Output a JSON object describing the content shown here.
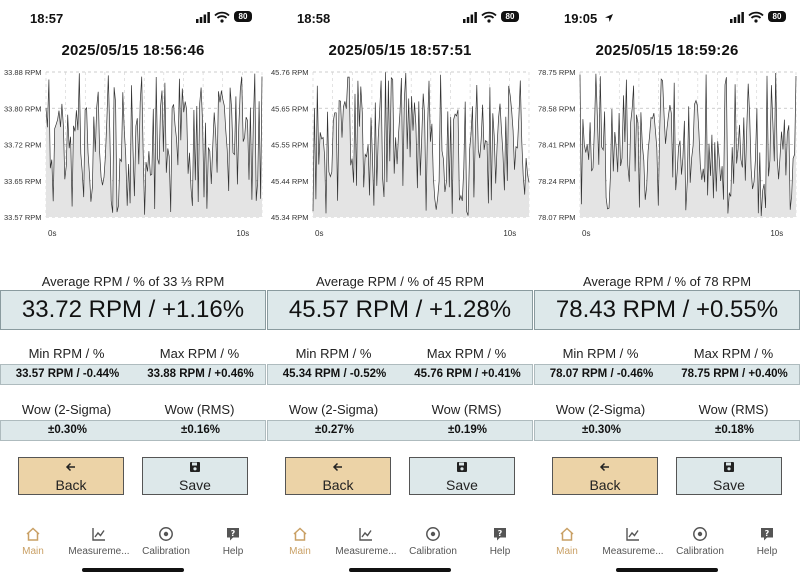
{
  "screens": [
    {
      "status_time": "18:57",
      "battery": "80",
      "location_arrow": false,
      "timestamp": "2025/05/15 18:56:46",
      "avg_label": "Average RPM / % of 33 ⅓ RPM",
      "avg_value": "33.72 RPM / +1.16%",
      "min_label": "Min RPM / %",
      "max_label": "Max RPM / %",
      "min_value": "33.57 RPM / -0.44%",
      "max_value": "33.88 RPM / +0.46%",
      "wow_sigma_label": "Wow (2-Sigma)",
      "wow_rms_label": "Wow (RMS)",
      "wow_sigma_value": "±0.30%",
      "wow_rms_value": "±0.16%",
      "chart_seed": 11,
      "chart_min": 33.57,
      "chart_max": 33.88
    },
    {
      "status_time": "18:58",
      "battery": "80",
      "location_arrow": false,
      "timestamp": "2025/05/15 18:57:51",
      "avg_label": "Average RPM / % of 45 RPM",
      "avg_value": "45.57 RPM / +1.28%",
      "min_label": "Min RPM / %",
      "max_label": "Max RPM / %",
      "min_value": "45.34 RPM / -0.52%",
      "max_value": "45.76 RPM / +0.41%",
      "wow_sigma_label": "Wow (2-Sigma)",
      "wow_rms_label": "Wow (RMS)",
      "wow_sigma_value": "±0.27%",
      "wow_rms_value": "±0.19%",
      "chart_seed": 29,
      "chart_min": 45.34,
      "chart_max": 45.76
    },
    {
      "status_time": "19:05",
      "battery": "80",
      "location_arrow": true,
      "timestamp": "2025/05/15 18:59:26",
      "avg_label": "Average RPM / % of 78 RPM",
      "avg_value": "78.43 RPM / +0.55%",
      "min_label": "Min RPM / %",
      "max_label": "Max RPM / %",
      "min_value": "78.07 RPM / -0.46%",
      "max_value": "78.75 RPM / +0.40%",
      "wow_sigma_label": "Wow (2-Sigma)",
      "wow_rms_label": "Wow (RMS)",
      "wow_sigma_value": "±0.30%",
      "wow_rms_value": "±0.18%",
      "chart_seed": 47,
      "chart_min": 78.07,
      "chart_max": 78.75
    }
  ],
  "buttons": {
    "back": "Back",
    "save": "Save"
  },
  "tabs": [
    "Main",
    "Measureme...",
    "Calibration",
    "Help"
  ],
  "colors": {
    "accent": "#c9a065",
    "panel": "#dde8ea",
    "back_button": "#ecd3a7"
  },
  "chart_data": [
    {
      "type": "area",
      "title": "2025/05/15 18:56:46",
      "xlabel": "",
      "ylabel": "RPM",
      "x_ticks": [
        "0s",
        "10s"
      ],
      "y_ticks": [
        "33.88 RPM",
        "33.80 RPM",
        "33.72 RPM",
        "33.65 RPM",
        "33.57 RPM"
      ],
      "ylim": [
        33.57,
        33.88
      ],
      "xlim": [
        0,
        11
      ],
      "grid": true
    },
    {
      "type": "area",
      "title": "2025/05/15 18:57:51",
      "xlabel": "",
      "ylabel": "RPM",
      "x_ticks": [
        "0s",
        "10s"
      ],
      "y_ticks": [
        "45.76 RPM",
        "45.65 RPM",
        "45.55 RPM",
        "45.44 RPM",
        "45.34 RPM"
      ],
      "ylim": [
        45.34,
        45.76
      ],
      "xlim": [
        0,
        11
      ],
      "grid": true
    },
    {
      "type": "area",
      "title": "2025/05/15 18:59:26",
      "xlabel": "",
      "ylabel": "RPM",
      "x_ticks": [
        "0s",
        "10s"
      ],
      "y_ticks": [
        "78.75 RPM",
        "78.58 RPM",
        "78.41 RPM",
        "78.24 RPM",
        "78.07 RPM"
      ],
      "ylim": [
        78.07,
        78.75
      ],
      "xlim": [
        0,
        11
      ],
      "grid": true
    }
  ]
}
